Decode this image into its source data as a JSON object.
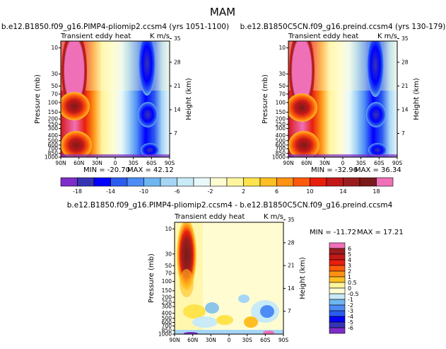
{
  "page_title": "MAM",
  "chart_data": [
    {
      "type": "heatmap",
      "title": "b.e12.B1850.f09_g16.PIMP4-pliomip2.ccsm4 (yrs 1051-1100)",
      "subtitle": "Transient eddy heat",
      "units": "K m/s",
      "xlabel": "",
      "ylabel": "Pressure (mb)",
      "y2label": "Height (km)",
      "x_ticks": [
        "90N",
        "60N",
        "30N",
        "0",
        "30S",
        "60S",
        "90S"
      ],
      "y_ticks": [
        "10",
        "30",
        "50",
        "70",
        "100",
        "150",
        "200",
        "250",
        "300",
        "400",
        "500",
        "600",
        "700",
        "850",
        "1000"
      ],
      "y2_ticks": [
        "35",
        "28",
        "21",
        "14",
        "7"
      ],
      "min_label": "MIN = -20.70",
      "max_label": "MAX = 42.12",
      "min": -20.7,
      "max": 42.12
    },
    {
      "type": "heatmap",
      "title": "b.e12.B1850C5CN.f09_g16.preind.ccsm4 (yrs 130-179)",
      "subtitle": "Transient eddy heat",
      "units": "K m/s",
      "xlabel": "",
      "ylabel": "Pressure (mb)",
      "y2label": "Height (km)",
      "x_ticks": [
        "90N",
        "60N",
        "30N",
        "0",
        "30S",
        "60S",
        "90S"
      ],
      "y_ticks": [
        "10",
        "30",
        "50",
        "70",
        "100",
        "150",
        "200",
        "250",
        "300",
        "400",
        "500",
        "600",
        "700",
        "850",
        "1000"
      ],
      "y2_ticks": [
        "35",
        "28",
        "21",
        "14",
        "7"
      ],
      "min_label": "MIN = -32.96",
      "max_label": "MAX = 36.34",
      "min": -32.96,
      "max": 36.34
    },
    {
      "type": "heatmap",
      "title": "b.e12.B1850.f09_g16.PIMP4-pliomip2.ccsm4 - b.e12.B1850C5CN.f09_g16.preind.ccsm4",
      "subtitle": "Transient eddy heat",
      "units": "K m/s",
      "xlabel": "",
      "ylabel": "Pressure (mb)",
      "y2label": "Height (km)",
      "x_ticks": [
        "90N",
        "60N",
        "30N",
        "0",
        "30S",
        "60S",
        "90S"
      ],
      "y_ticks": [
        "10",
        "30",
        "50",
        "70",
        "100",
        "150",
        "200",
        "250",
        "300",
        "400",
        "500",
        "600",
        "700",
        "850",
        "1000"
      ],
      "y2_ticks": [
        "35",
        "28",
        "21",
        "14",
        "7"
      ],
      "min_label": "MIN = -11.72",
      "max_label": "MAX = 17.21",
      "min": -11.72,
      "max": 17.21
    }
  ],
  "colorbar_top": {
    "labels": [
      "-18",
      "-14",
      "-10",
      "-6",
      "-2",
      "2",
      "6",
      "10",
      "14",
      "18"
    ],
    "colors": [
      "#7d2ec8",
      "#3535b4",
      "#0000ff",
      "#2b5cf0",
      "#4d8cf5",
      "#70b6f0",
      "#a6d5f5",
      "#c9eaf7",
      "#e9f8fb",
      "#fffcd2",
      "#fff59e",
      "#ffe34d",
      "#ffbe22",
      "#ff9114",
      "#ff5a0a",
      "#e81e0c",
      "#c41818",
      "#9a1e1e",
      "#7a1a1a",
      "#f070b8"
    ]
  },
  "colorbar_diff": {
    "labels": [
      "6",
      "5",
      "4",
      "3",
      "2",
      "1",
      "0.5",
      "0",
      "-0.5",
      "-1",
      "-2",
      "-3",
      "-4",
      "-5",
      "-6"
    ],
    "colors": [
      "#f070b8",
      "#9a1e1e",
      "#c41818",
      "#e81e0c",
      "#ff5a0a",
      "#ff9114",
      "#ffbe22",
      "#fff59e",
      "#fffcd2",
      "#c9eaf7",
      "#70b6f0",
      "#4d8cf5",
      "#2b5cf0",
      "#0000ff",
      "#3535b4",
      "#7d2ec8"
    ]
  }
}
